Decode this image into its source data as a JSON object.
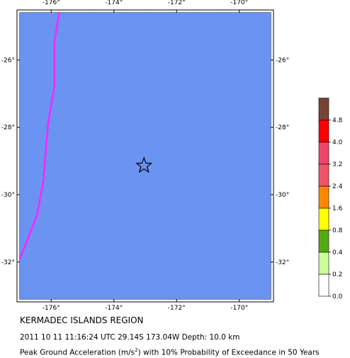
{
  "map": {
    "lon_range": [
      -177,
      -169
    ],
    "lat_range": [
      -33.1,
      -24.6
    ],
    "ocean_color": "#6a93f2",
    "lon_ticks": [
      -176,
      -174,
      -172,
      -170
    ],
    "lat_ticks": [
      -26,
      -28,
      -30,
      -32
    ],
    "lon_labels": [
      "-176°",
      "-174°",
      "-172°",
      "-170°"
    ],
    "lat_labels": [
      "-26°",
      "-28°",
      "-30°",
      "-32°"
    ],
    "plate_boundary_color": "#ff22ff",
    "plate_boundary": [
      [
        -175.75,
        -24.6
      ],
      [
        -175.9,
        -25.5
      ],
      [
        -175.9,
        -26.8
      ],
      [
        -176.1,
        -27.9
      ],
      [
        -176.2,
        -29.0
      ],
      [
        -176.25,
        -29.6
      ],
      [
        -176.45,
        -30.6
      ],
      [
        -176.7,
        -31.2
      ],
      [
        -177,
        -31.9
      ]
    ],
    "epicenter": {
      "lon": -173.04,
      "lat": -29.14,
      "icon": "star-icon"
    }
  },
  "legend": {
    "labels": [
      "0.0",
      "0.2",
      "0.4",
      "0.8",
      "1.6",
      "2.4",
      "3.2",
      "4.0",
      "4.8"
    ],
    "colors": [
      "#ffffff",
      "#ccff99",
      "#55aa11",
      "#ffff00",
      "#ff8800",
      "#ee5566",
      "#ee4466",
      "#ff0000",
      "#774433"
    ]
  },
  "captions": {
    "region": "KERMADEC ISLANDS REGION",
    "event": "2011 10 11 11:16:24 UTC 29.14S 173.04W Depth: 10.0 km",
    "pga_prefix": "Peak Ground Acceleration (m/s",
    "pga_exp": "2",
    "pga_suffix": ") with 10% Probability of Exceedance in 50 Years"
  }
}
